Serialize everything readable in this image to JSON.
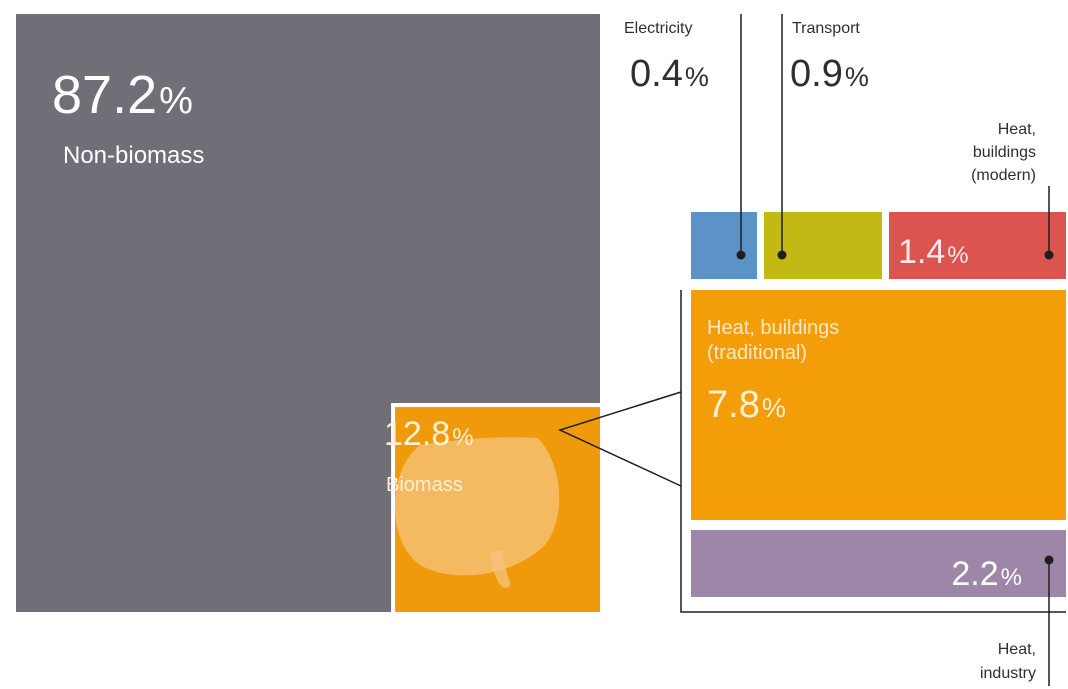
{
  "chart_data": {
    "type": "treemap",
    "unit": "%",
    "total": [
      {
        "key": "non_biomass",
        "label": "Non-biomass",
        "value": 87.2,
        "color": "#716e78",
        "text_color": "#ffffff"
      },
      {
        "key": "biomass",
        "label": "Biomass",
        "value": 12.8,
        "color": "#ef9a0b",
        "text_color": "#fdf0d6"
      }
    ],
    "biomass_breakdown": [
      {
        "key": "electricity",
        "label": "Electricity",
        "value": 0.4,
        "color": "#5b93c6"
      },
      {
        "key": "transport",
        "label": "Transport",
        "value": 0.9,
        "color": "#c3b914"
      },
      {
        "key": "heat_buildings_modern",
        "label_lines": [
          "Heat,",
          "buildings",
          "(modern)"
        ],
        "value": 1.4,
        "color": "#dc5450"
      },
      {
        "key": "heat_buildings_traditional",
        "label_lines": [
          "Heat, buildings",
          "(traditional)"
        ],
        "value": 7.8,
        "color": "#f39e09"
      },
      {
        "key": "heat_industry",
        "label_lines": [
          "Heat,",
          "industry"
        ],
        "value": 2.2,
        "color": "#9e86a8"
      }
    ],
    "colors": {
      "leader_line": "#1e1e1e",
      "external_text": "#2f2f2f",
      "leaf_icon": "#f7c98c"
    },
    "icons": [
      "biomass-leaf-icon"
    ]
  }
}
